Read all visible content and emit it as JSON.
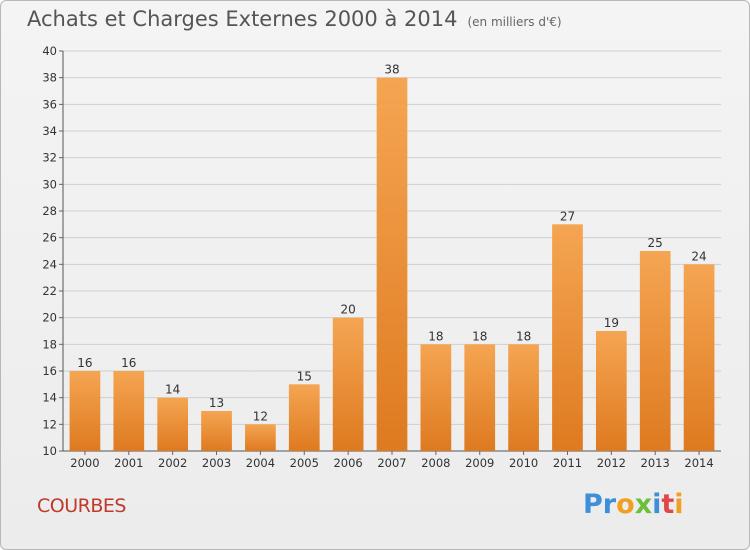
{
  "header": {
    "title": "Achats et Charges Externes 2000 à 2014",
    "unit": "(en milliers d'€)"
  },
  "footer": {
    "commune": "COURBES",
    "logo_letters": [
      "P",
      "r",
      "o",
      "x",
      "i",
      "t",
      "i"
    ],
    "logo_colors": [
      "#3c8fd8",
      "#3c8fd8",
      "#f0a020",
      "#6cbf3a",
      "#3c8fd8",
      "#e04848",
      "#f0a020"
    ]
  },
  "colors": {
    "bar_top": "#f5a552",
    "bar_bottom": "#de7a20",
    "grid": "#cfcfcf",
    "commune": "#c0392b"
  },
  "chart_data": {
    "type": "bar",
    "categories": [
      "2000",
      "2001",
      "2002",
      "2003",
      "2004",
      "2005",
      "2006",
      "2007",
      "2008",
      "2009",
      "2010",
      "2011",
      "2012",
      "2013",
      "2014"
    ],
    "values": [
      16,
      16,
      14,
      13,
      12,
      15,
      20,
      38,
      18,
      18,
      18,
      27,
      19,
      25,
      24
    ],
    "ylim": [
      10,
      40
    ],
    "yticks": [
      10,
      12,
      14,
      16,
      18,
      20,
      22,
      24,
      26,
      28,
      30,
      32,
      34,
      36,
      38,
      40
    ],
    "grid": true,
    "xlabel": "",
    "ylabel": ""
  }
}
